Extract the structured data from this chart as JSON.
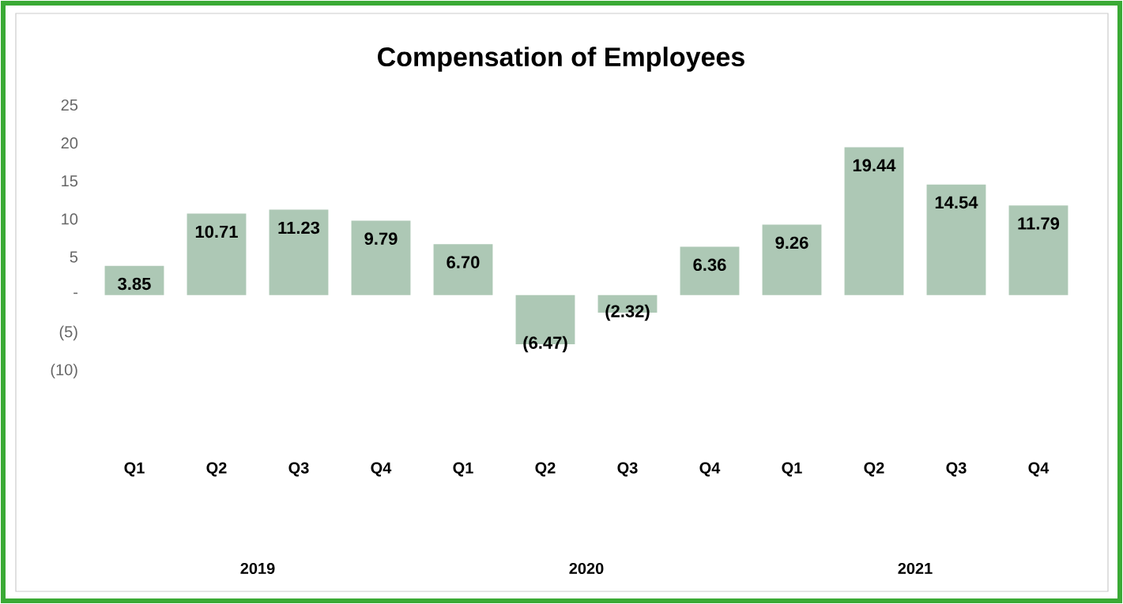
{
  "chart_data": {
    "type": "bar",
    "title": "Compensation of Employees",
    "categories": [
      "Q1",
      "Q2",
      "Q3",
      "Q4",
      "Q1",
      "Q2",
      "Q3",
      "Q4",
      "Q1",
      "Q2",
      "Q3",
      "Q4"
    ],
    "values": [
      3.85,
      10.71,
      11.23,
      9.79,
      6.7,
      -6.47,
      -2.32,
      6.36,
      9.26,
      19.44,
      14.54,
      11.79
    ],
    "value_labels": [
      "3.85",
      "10.71",
      "11.23",
      "9.79",
      "6.70",
      "(6.47)",
      "(2.32)",
      "6.36",
      "9.26",
      "19.44",
      "14.54",
      "11.79"
    ],
    "color": "#adc8b5",
    "ylim": [
      -10,
      25
    ],
    "yticks": [
      {
        "value": -10,
        "label": "(10)"
      },
      {
        "value": -5,
        "label": "(5)"
      },
      {
        "value": 0,
        "label": "-"
      },
      5,
      10,
      15,
      20,
      25
    ],
    "annotations": [
      "2019",
      "2020",
      "2021"
    ]
  }
}
